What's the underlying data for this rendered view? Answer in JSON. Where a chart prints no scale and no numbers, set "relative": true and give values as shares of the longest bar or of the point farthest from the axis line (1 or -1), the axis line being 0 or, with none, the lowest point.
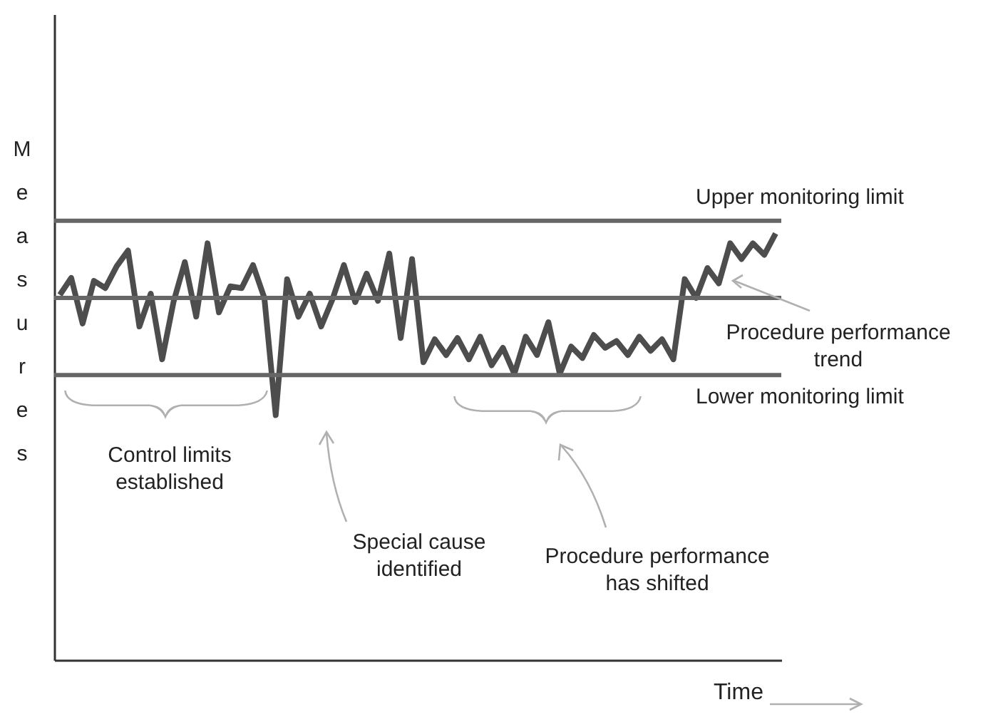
{
  "chart_data": {
    "type": "line",
    "ylabel": "Measures",
    "xlabel": "Time",
    "relative": true,
    "grid": false,
    "marker": "none",
    "line_style": "solid",
    "categories": [
      null,
      null,
      null,
      null,
      null,
      null,
      null,
      null,
      null,
      null,
      null,
      null,
      null,
      null,
      null,
      null,
      null,
      null,
      null,
      null,
      null,
      null,
      null,
      null,
      null,
      null,
      null,
      null,
      null,
      null,
      null,
      null,
      null,
      null,
      null,
      null,
      null,
      null,
      null,
      null,
      null,
      null,
      null,
      null,
      null,
      null,
      null,
      null,
      null,
      null,
      null,
      null,
      null,
      null,
      null,
      null,
      null,
      null,
      null,
      null,
      null,
      null,
      null,
      null
    ],
    "series": [
      {
        "color": "#4d4d4d",
        "values": [
          0.856,
          0.896,
          0.789,
          0.889,
          0.872,
          0.923,
          0.96,
          0.782,
          0.859,
          0.705,
          0.839,
          0.933,
          0.805,
          0.977,
          0.815,
          0.876,
          0.872,
          0.926,
          0.849,
          0.574,
          0.893,
          0.805,
          0.859,
          0.782,
          0.846,
          0.926,
          0.839,
          0.906,
          0.842,
          0.953,
          0.755,
          0.94,
          0.698,
          0.752,
          0.715,
          0.755,
          0.705,
          0.758,
          0.691,
          0.732,
          0.671,
          0.758,
          0.715,
          0.792,
          0.671,
          0.735,
          0.708,
          0.762,
          0.732,
          0.748,
          0.715,
          0.758,
          0.725,
          0.752,
          0.705,
          0.893,
          0.849,
          0.919,
          0.883,
          0.977,
          0.94,
          0.977,
          0.95,
          1.0
        ]
      }
    ],
    "ref_lines": [
      {
        "axis": "y",
        "value": 1.03,
        "label": "Upper monitoring limit",
        "color": "#666666"
      },
      {
        "axis": "y",
        "value": 0.849,
        "color": "#666666"
      },
      {
        "axis": "y",
        "value": 0.668,
        "label": "Lower monitoring limit",
        "color": "#666666"
      }
    ],
    "annotations": [
      "Control limits established",
      "Special cause identified",
      "Procedure performance has shifted",
      "Procedure performance trend"
    ]
  }
}
